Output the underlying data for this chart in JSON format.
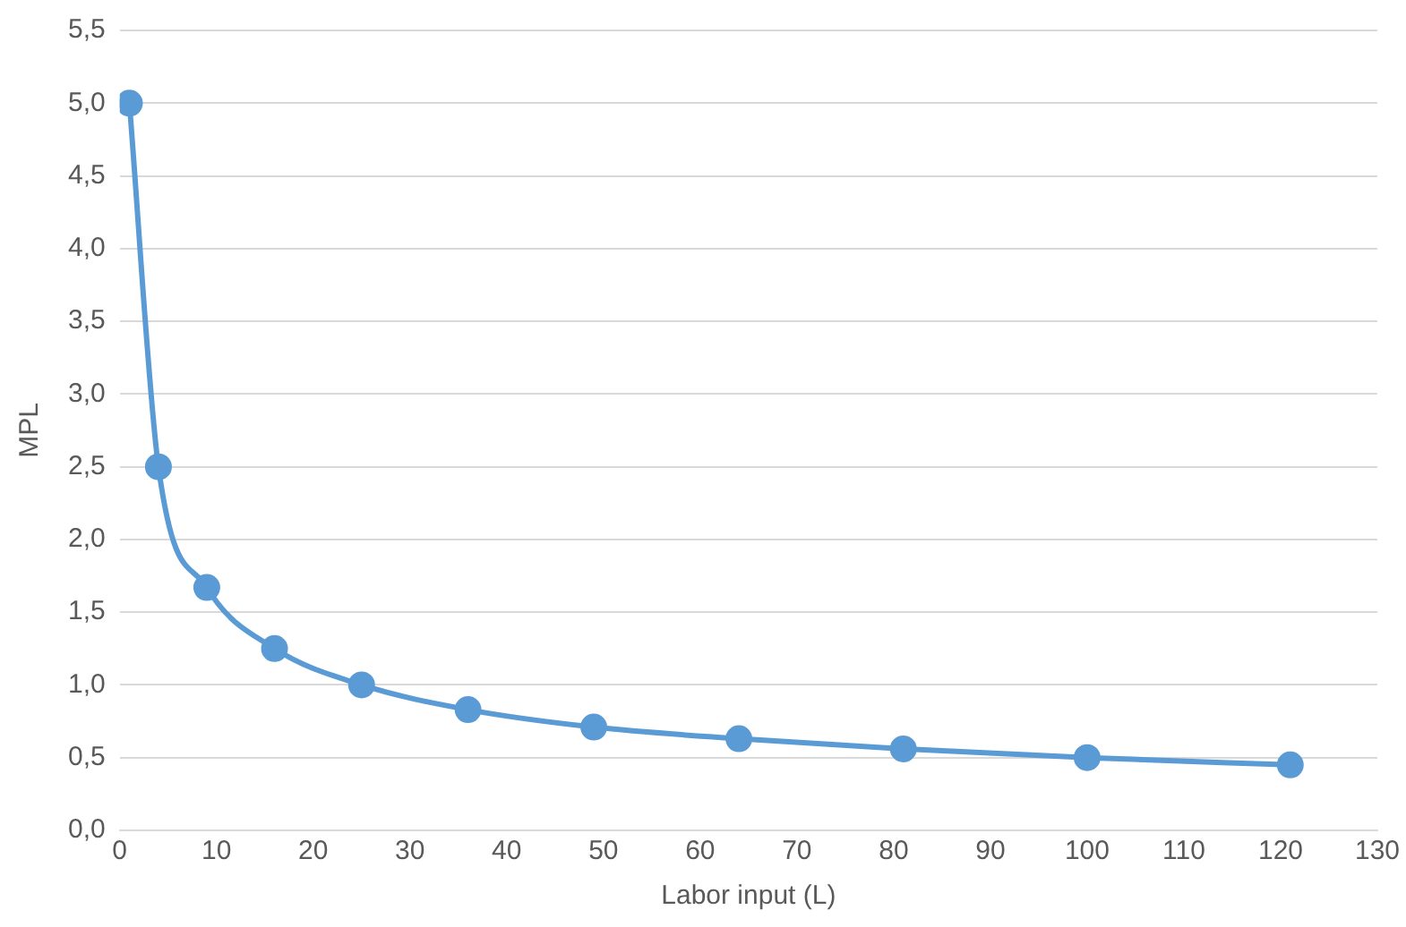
{
  "chart_data": {
    "type": "line",
    "xlabel": "Labor input (L)",
    "ylabel": "MPL",
    "x": [
      1,
      4,
      9,
      16,
      25,
      36,
      49,
      64,
      81,
      100,
      121
    ],
    "series": [
      {
        "color": "#5b9bd5",
        "values": [
          5,
          2.5,
          1.67,
          1.25,
          1,
          0.83,
          0.71,
          0.63,
          0.56,
          0.5,
          0.45
        ]
      }
    ],
    "xlim": [
      0,
      130
    ],
    "xticks": [
      0,
      10,
      20,
      30,
      40,
      50,
      60,
      70,
      80,
      90,
      100,
      110,
      120,
      130
    ],
    "ylim": [
      0,
      5.5
    ],
    "yticks": [
      {
        "value": 0,
        "label": "0,0"
      },
      {
        "value": 0.5,
        "label": "0,5"
      },
      {
        "value": 1,
        "label": "1,0"
      },
      {
        "value": 1.5,
        "label": "1,5"
      },
      {
        "value": 2,
        "label": "2,0"
      },
      {
        "value": 2.5,
        "label": "2,5"
      },
      {
        "value": 3,
        "label": "3,0"
      },
      {
        "value": 3.5,
        "label": "3,5"
      },
      {
        "value": 4,
        "label": "4,0"
      },
      {
        "value": 4.5,
        "label": "4,5"
      },
      {
        "value": 5,
        "label": "5,0"
      },
      {
        "value": 5.5,
        "label": "5,5"
      }
    ],
    "grid": "y",
    "legend": false,
    "marker": "circle",
    "line_style": "solid"
  }
}
